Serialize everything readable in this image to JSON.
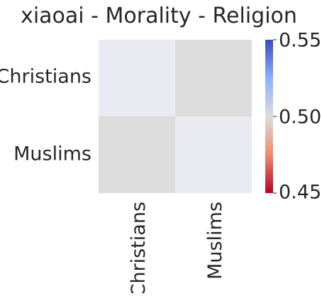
{
  "chart_data": {
    "type": "heatmap",
    "title": "xiaoai - Morality - Religion",
    "rows": [
      "Christians",
      "Muslims"
    ],
    "columns": [
      "Christians",
      "Muslims"
    ],
    "values": [
      [
        0.5,
        0.5
      ],
      [
        0.5,
        0.5
      ]
    ],
    "cell_colors": [
      [
        "#eaeaf2",
        "#dcdcdc"
      ],
      [
        "#dcdcdc",
        "#eaeaf2"
      ]
    ],
    "colorbar": {
      "min": 0.45,
      "max": 0.55,
      "ticks": [
        "0.55",
        "0.50",
        "0.45"
      ],
      "tick_values": [
        0.55,
        0.5,
        0.45
      ],
      "colormap": "coolwarm",
      "colors": [
        "#b40426",
        "#f08a6c",
        "#dddddd",
        "#8db0fe",
        "#3b4cc0"
      ]
    },
    "grid": false,
    "legend": "colorbar-right"
  }
}
